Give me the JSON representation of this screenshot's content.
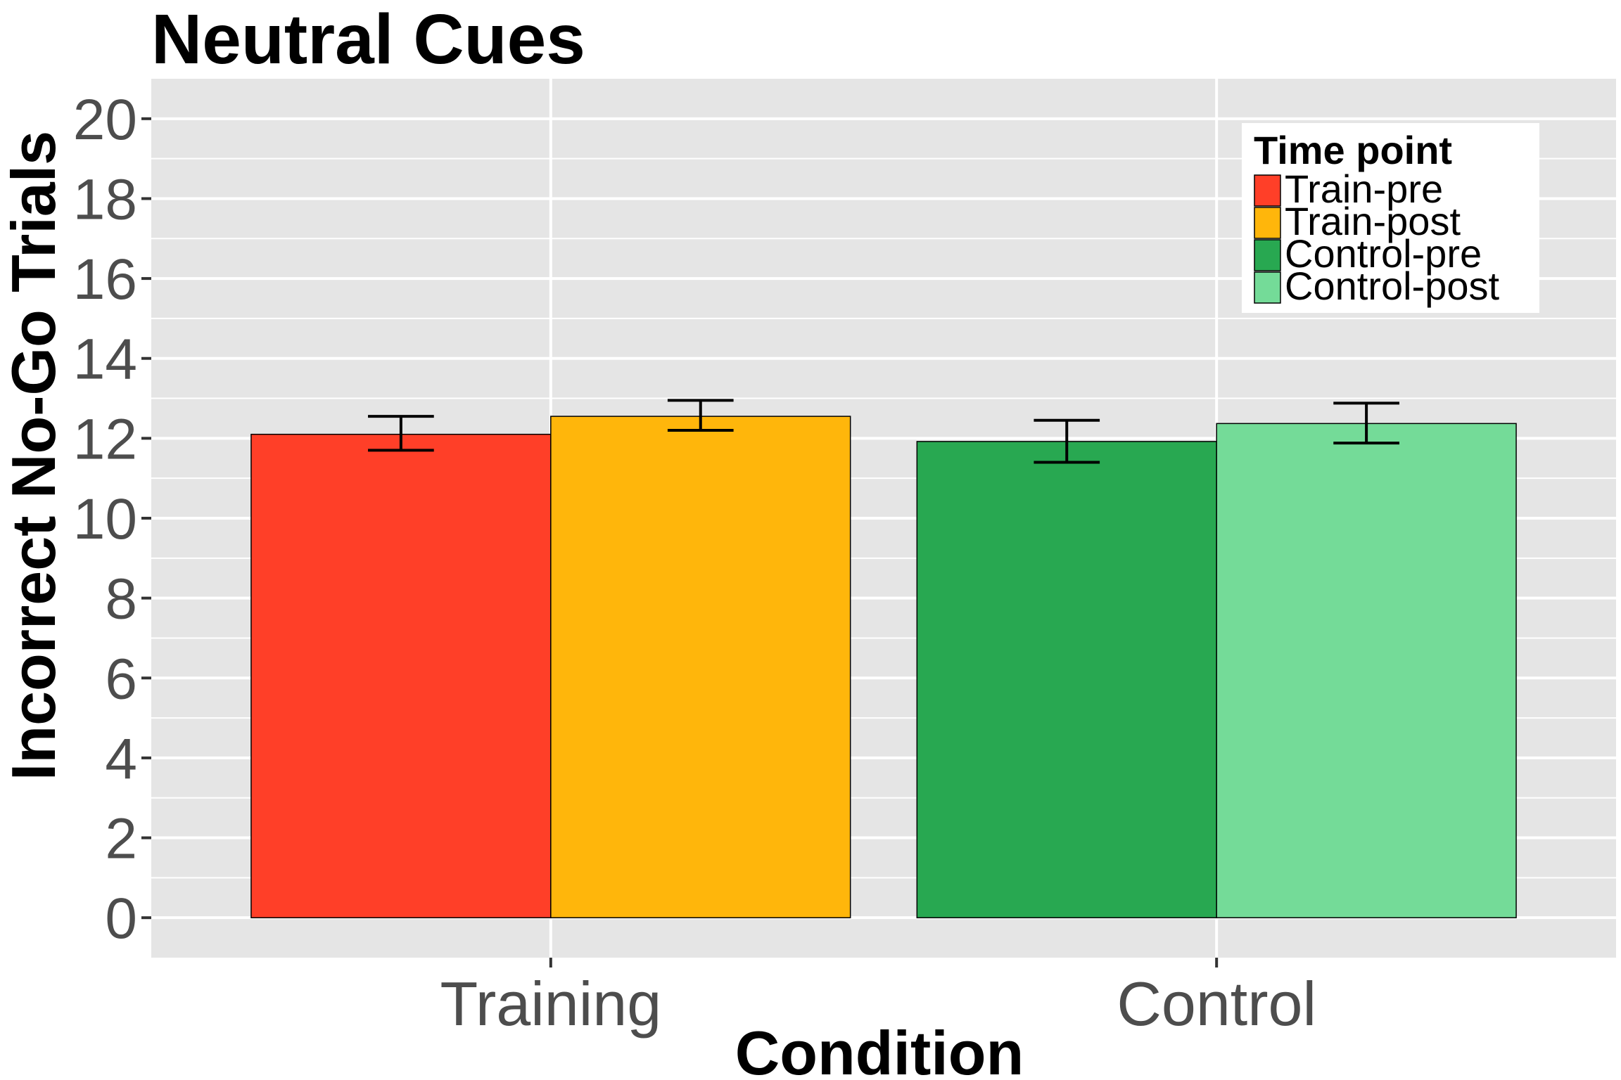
{
  "chart_data": {
    "type": "bar",
    "title": "Neutral Cues",
    "xlabel": "Condition",
    "ylabel": "Incorrect No-Go Trials",
    "categories": [
      "Training",
      "Control"
    ],
    "ylim": [
      -1,
      21
    ],
    "yticks": [
      0,
      2,
      4,
      6,
      8,
      10,
      12,
      14,
      16,
      18,
      20
    ],
    "grid": true,
    "legend": {
      "title": "Time point",
      "placement": "top-right",
      "entries": [
        "Train-pre",
        "Train-post",
        "Control-pre",
        "Control-post"
      ]
    },
    "colors": {
      "panel": "#E5E5E5",
      "grid": "#FFFFFF",
      "Train-pre": "#FF3F28",
      "Train-post": "#FFB60B",
      "Control-pre": "#28A851",
      "Control-post": "#74DB98"
    },
    "bars": [
      {
        "category": "Training",
        "series": "Train-pre",
        "value": 12.1,
        "err_low": 11.7,
        "err_high": 12.55
      },
      {
        "category": "Training",
        "series": "Train-post",
        "value": 12.55,
        "err_low": 12.2,
        "err_high": 12.95
      },
      {
        "category": "Control",
        "series": "Control-pre",
        "value": 11.92,
        "err_low": 11.4,
        "err_high": 12.45
      },
      {
        "category": "Control",
        "series": "Control-post",
        "value": 12.37,
        "err_low": 11.88,
        "err_high": 12.88
      }
    ]
  }
}
